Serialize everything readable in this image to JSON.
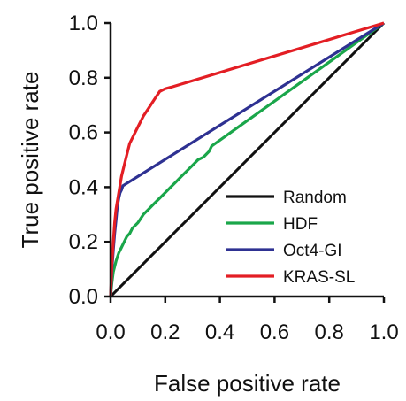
{
  "chart_data": {
    "type": "line",
    "title": "",
    "xlabel": "False positive rate",
    "ylabel": "True positive rate",
    "xlim": [
      0,
      1
    ],
    "ylim": [
      0,
      1
    ],
    "xticks": [
      "0.0",
      "0.2",
      "0.4",
      "0.6",
      "0.8",
      "1.0"
    ],
    "yticks": [
      "0.0",
      "0.2",
      "0.4",
      "0.6",
      "0.8",
      "1.0"
    ],
    "grid": false,
    "legend_position": "bottom-right",
    "series": [
      {
        "name": "Random",
        "color": "#111111",
        "x": [
          0,
          1
        ],
        "y": [
          0,
          1
        ]
      },
      {
        "name": "HDF",
        "color": "#1aa64a",
        "x": [
          0,
          0.005,
          0.01,
          0.02,
          0.03,
          0.04,
          0.05,
          0.06,
          0.07,
          0.08,
          0.09,
          0.1,
          0.12,
          0.14,
          0.16,
          0.18,
          0.2,
          0.22,
          0.24,
          0.26,
          0.28,
          0.3,
          0.32,
          0.34,
          0.36,
          0.37,
          1.0
        ],
        "y": [
          0,
          0.05,
          0.09,
          0.13,
          0.16,
          0.18,
          0.2,
          0.22,
          0.23,
          0.25,
          0.26,
          0.27,
          0.3,
          0.32,
          0.34,
          0.36,
          0.38,
          0.4,
          0.42,
          0.44,
          0.46,
          0.48,
          0.5,
          0.51,
          0.53,
          0.55,
          1.0
        ]
      },
      {
        "name": "Oct4-GI",
        "color": "#2e3192",
        "x": [
          0,
          0.005,
          0.01,
          0.015,
          0.02,
          0.025,
          0.03,
          0.035,
          0.04,
          0.045,
          1.0
        ],
        "y": [
          0,
          0.1,
          0.17,
          0.23,
          0.28,
          0.33,
          0.36,
          0.38,
          0.39,
          0.405,
          1.0
        ]
      },
      {
        "name": "KRAS-SL",
        "color": "#e31e24",
        "x": [
          0,
          0.005,
          0.01,
          0.015,
          0.02,
          0.03,
          0.04,
          0.05,
          0.06,
          0.07,
          0.08,
          0.1,
          0.12,
          0.14,
          0.16,
          0.18,
          0.2,
          0.22,
          1.0
        ],
        "y": [
          0,
          0.12,
          0.2,
          0.27,
          0.32,
          0.38,
          0.44,
          0.48,
          0.52,
          0.56,
          0.58,
          0.62,
          0.66,
          0.69,
          0.72,
          0.75,
          0.76,
          0.765,
          1.0
        ]
      }
    ]
  }
}
